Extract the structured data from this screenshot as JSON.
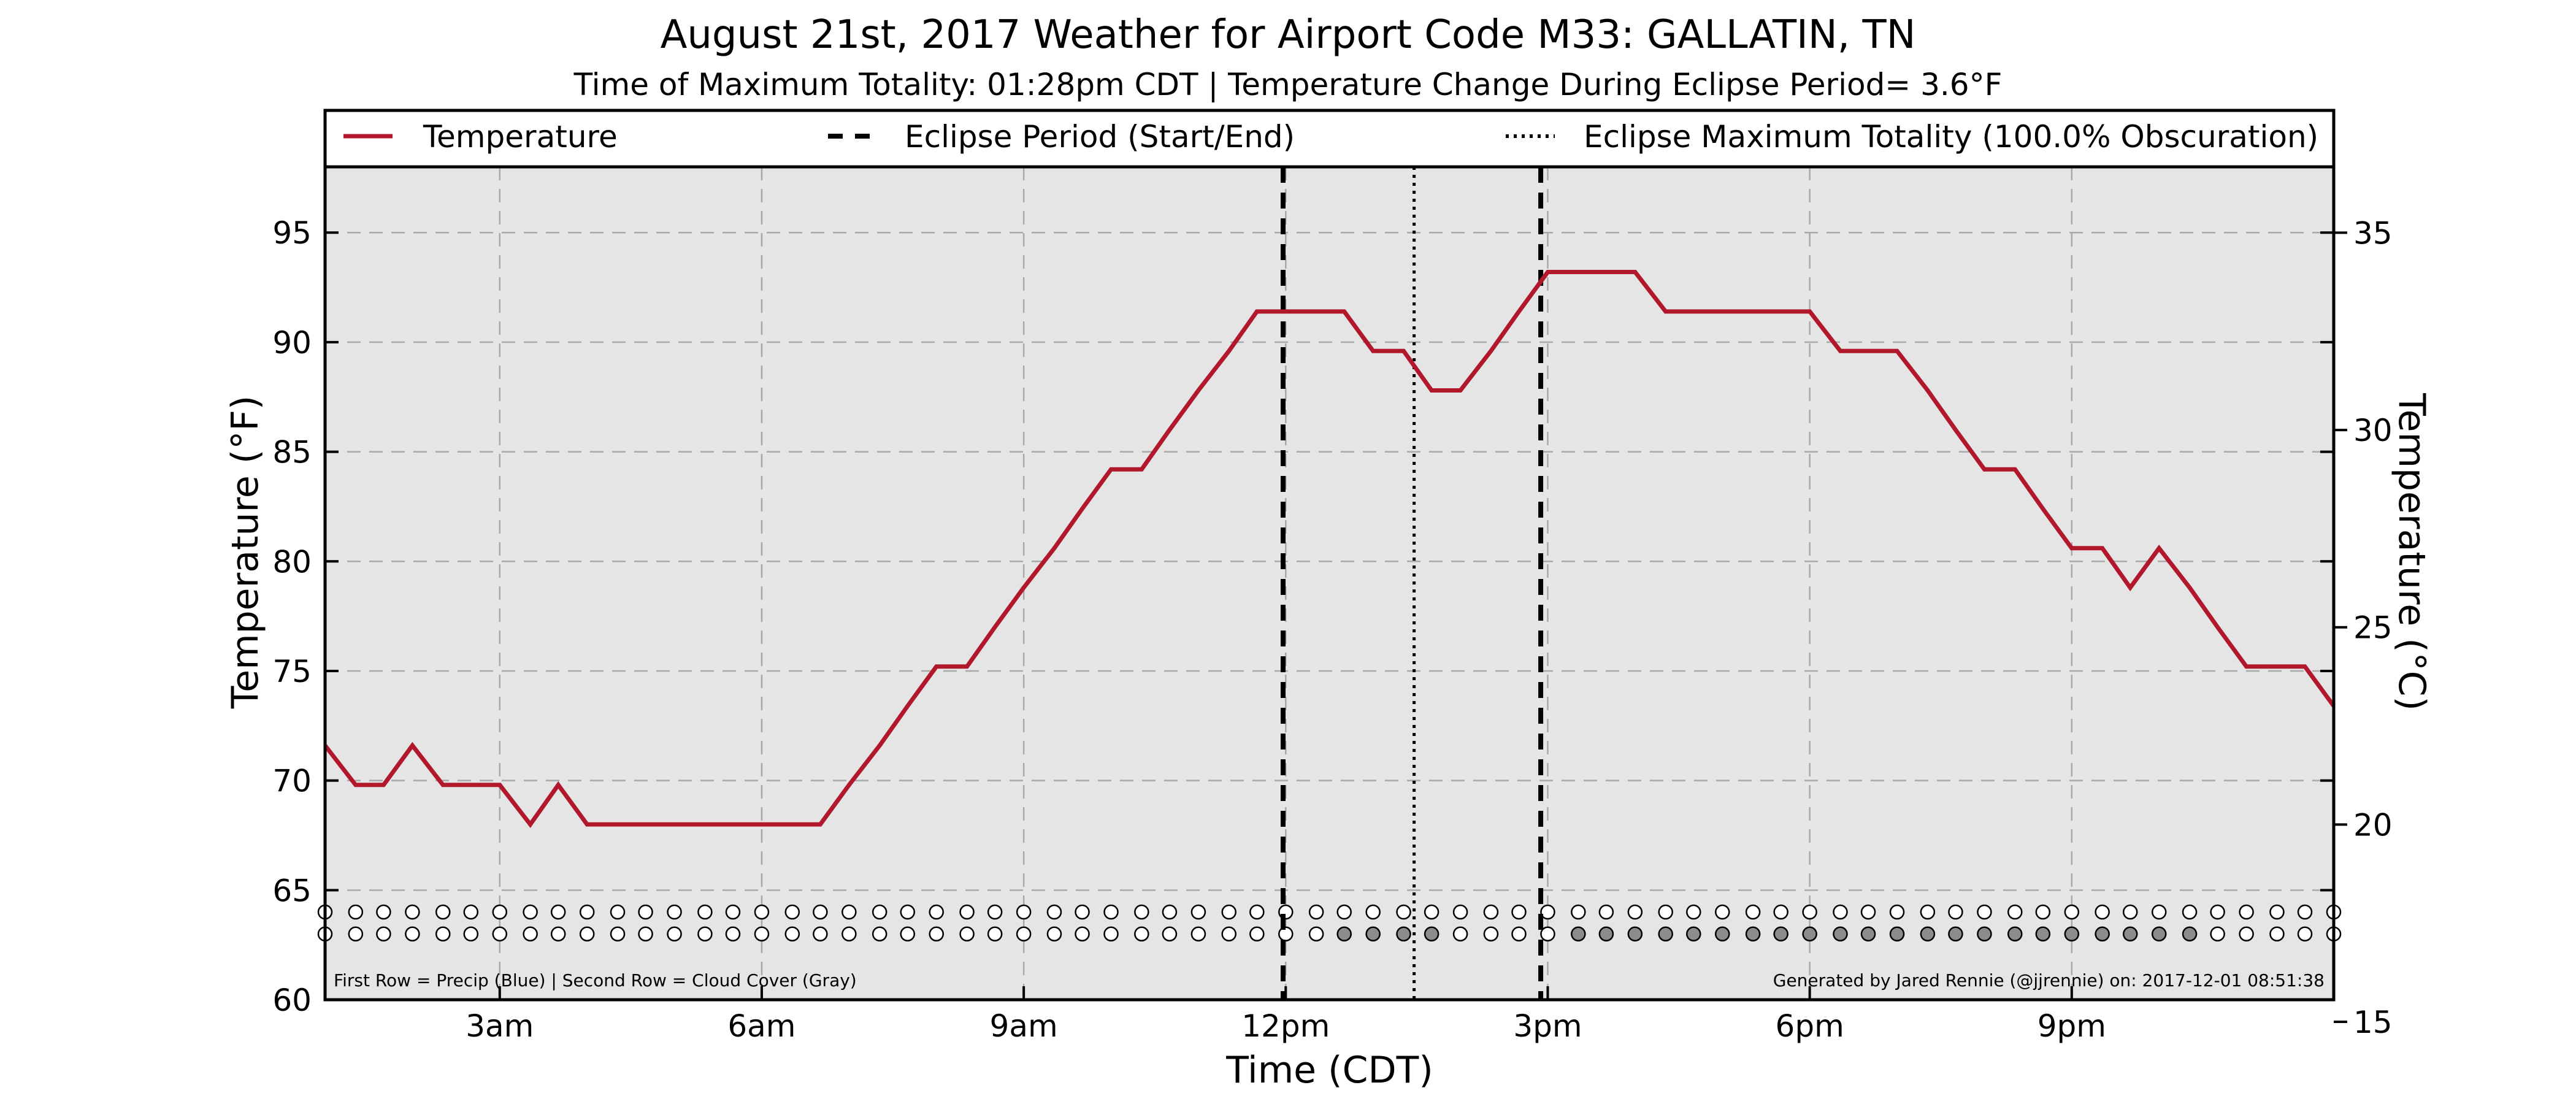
{
  "chart_data": {
    "type": "line",
    "title": "August 21st, 2017 Weather for Airport Code M33: GALLATIN, TN",
    "subtitle": "Time of Maximum Totality: 01:28pm CDT | Temperature Change During Eclipse Period= 3.6°F",
    "xlabel": "Time (CDT)",
    "ylabel": "Temperature (°F)",
    "ylabel_right": "Temperature (°C)",
    "xlim": [
      1.0,
      24.0
    ],
    "ylim": [
      60,
      98
    ],
    "ylim_right": [
      15.56,
      36.67
    ],
    "x_ticks": [
      {
        "value": 3,
        "label": "3am"
      },
      {
        "value": 6,
        "label": "6am"
      },
      {
        "value": 9,
        "label": "9am"
      },
      {
        "value": 12,
        "label": "12pm"
      },
      {
        "value": 15,
        "label": "3pm"
      },
      {
        "value": 18,
        "label": "6pm"
      },
      {
        "value": 21,
        "label": "9pm"
      }
    ],
    "y_ticks": [
      60,
      65,
      70,
      75,
      80,
      85,
      90,
      95
    ],
    "y_ticks_right": [
      15,
      20,
      25,
      30,
      35
    ],
    "grid": true,
    "legend_placement": "top, above plot",
    "legend": [
      {
        "label": "Temperature",
        "style": "solid",
        "color": "#b2182b"
      },
      {
        "label": "Eclipse Period (Start/End)",
        "style": "dashed",
        "color": "#000000"
      },
      {
        "label": "Eclipse Maximum Totality (100.0% Obscuration)",
        "style": "dotted",
        "color": "#000000"
      }
    ],
    "series": [
      {
        "name": "Temperature",
        "color": "#b2182b",
        "x": [
          1.0,
          1.35,
          1.67,
          2.0,
          2.35,
          2.67,
          3.0,
          3.35,
          3.67,
          4.0,
          4.35,
          4.67,
          5.0,
          5.35,
          5.67,
          6.0,
          6.35,
          6.67,
          7.0,
          7.35,
          7.67,
          8.0,
          8.35,
          8.67,
          9.0,
          9.35,
          9.67,
          10.0,
          10.35,
          10.67,
          11.0,
          11.35,
          11.67,
          12.0,
          12.35,
          12.67,
          13.0,
          13.35,
          13.67,
          14.0,
          14.35,
          14.67,
          15.0,
          15.35,
          15.67,
          16.0,
          16.35,
          16.67,
          17.0,
          17.35,
          17.67,
          18.0,
          18.35,
          18.67,
          19.0,
          19.35,
          19.67,
          20.0,
          20.35,
          20.67,
          21.0,
          21.35,
          21.67,
          22.0,
          22.35,
          22.67,
          23.0,
          23.35,
          23.67,
          24.0
        ],
        "values": [
          71.6,
          69.8,
          69.8,
          71.6,
          69.8,
          69.8,
          69.8,
          68.0,
          69.8,
          68.0,
          68.0,
          68.0,
          68.0,
          68.0,
          68.0,
          68.0,
          68.0,
          68.0,
          69.8,
          71.6,
          73.4,
          75.2,
          75.2,
          77.0,
          78.8,
          80.6,
          82.4,
          84.2,
          84.2,
          86.0,
          87.8,
          89.6,
          91.4,
          91.4,
          91.4,
          91.4,
          89.6,
          89.6,
          87.8,
          87.8,
          89.6,
          91.4,
          93.2,
          93.2,
          93.2,
          93.2,
          91.4,
          91.4,
          91.4,
          91.4,
          91.4,
          91.4,
          89.6,
          89.6,
          89.6,
          87.8,
          86.0,
          84.2,
          84.2,
          82.4,
          80.6,
          80.6,
          78.8,
          80.6,
          78.8,
          77.0,
          75.2,
          75.2,
          75.2,
          73.4
        ]
      }
    ],
    "eclipse_start": 11.97,
    "eclipse_end": 14.92,
    "eclipse_max": 13.47,
    "markers": {
      "precip_row_y": 64.0,
      "cloud_row_y": 63.0,
      "cloud_filled_x": [
        12.67,
        13.0,
        13.35,
        13.67,
        15.35,
        15.67,
        16.0,
        16.35,
        16.67,
        17.0,
        17.35,
        17.67,
        18.0,
        18.35,
        18.67,
        19.0,
        19.35,
        19.67,
        20.0,
        20.35,
        20.67,
        21.0,
        21.35,
        21.67,
        22.0,
        22.35
      ]
    },
    "note_left": "First Row = Precip (Blue) | Second Row = Cloud Cover (Gray)",
    "note_right": "Generated by Jared Rennie (@jjrennie) on: 2017-12-01 08:51:38"
  },
  "colors": {
    "temperature": "#b2182b",
    "plot_background": "#e5e5e5",
    "grid": "#a8a8a8",
    "cloud_fill": "#8c8c8c",
    "marker_empty": "#ffffff"
  }
}
